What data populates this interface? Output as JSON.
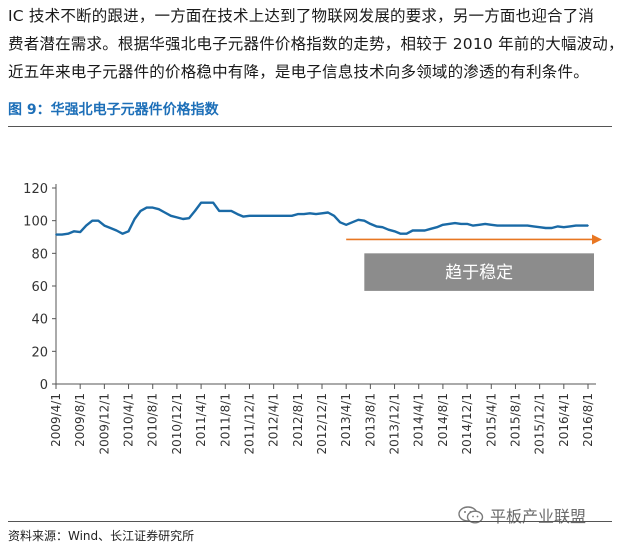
{
  "intro": {
    "line1": "IC 技术不断的跟进，一方面在技术上达到了物联网发展的要求，另一方面也迎合了消",
    "line2": "费者潜在需求。根据华强北电子元器件价格指数的走势，相较于 2010 年前的大幅波动，",
    "line3": "近五年来电子元器件的价格稳中有降，是电子信息技术向多领域的渗透的有利条件。"
  },
  "figure_title": "图 9：华强北电子元器件价格指数",
  "source": "资料来源：Wind、长江证券研究所",
  "watermark": "平板产业联盟",
  "colors": {
    "line": "#1a6aa6",
    "trend_arrow": "#e87722",
    "annotation_box": "#8c8c8c",
    "title": "#1d6fb8"
  },
  "chart_data": {
    "type": "line",
    "title": "",
    "xlabel": "",
    "ylabel": "",
    "ylim": [
      0,
      120
    ],
    "yticks": [
      0,
      20,
      40,
      60,
      80,
      100,
      120
    ],
    "xtick_labels": [
      "2009/4/1",
      "2009/8/1",
      "2009/12/1",
      "2010/4/1",
      "2010/8/1",
      "2010/12/1",
      "2011/4/1",
      "2011/8/1",
      "2011/12/1",
      "2012/4/1",
      "2012/8/1",
      "2012/12/1",
      "2013/4/1",
      "2013/8/1",
      "2013/12/1",
      "2014/4/1",
      "2014/8/1",
      "2014/12/1",
      "2015/4/1",
      "2015/8/1",
      "2015/12/1",
      "2016/4/1",
      "2016/8/1"
    ],
    "grid": false,
    "legend": "none",
    "annotation": "趋于稳定",
    "series": [
      {
        "x": [
          "2009/4/1",
          "2009/5/1",
          "2009/6/1",
          "2009/7/1",
          "2009/8/1",
          "2009/9/1",
          "2009/10/1",
          "2009/11/1",
          "2009/12/1",
          "2010/1/1",
          "2010/2/1",
          "2010/3/1",
          "2010/4/1",
          "2010/5/1",
          "2010/6/1",
          "2010/7/1",
          "2010/8/1",
          "2010/9/1",
          "2010/10/1",
          "2010/11/1",
          "2010/12/1",
          "2011/1/1",
          "2011/2/1",
          "2011/3/1",
          "2011/4/1",
          "2011/5/1",
          "2011/6/1",
          "2011/7/1",
          "2011/8/1",
          "2011/9/1",
          "2011/10/1",
          "2011/11/1",
          "2011/12/1",
          "2012/1/1",
          "2012/2/1",
          "2012/3/1",
          "2012/4/1",
          "2012/5/1",
          "2012/6/1",
          "2012/7/1",
          "2012/8/1",
          "2012/9/1",
          "2012/10/1",
          "2012/11/1",
          "2012/12/1",
          "2013/1/1",
          "2013/2/1",
          "2013/3/1",
          "2013/4/1",
          "2013/5/1",
          "2013/6/1",
          "2013/7/1",
          "2013/8/1",
          "2013/9/1",
          "2013/10/1",
          "2013/11/1",
          "2013/12/1",
          "2014/1/1",
          "2014/2/1",
          "2014/3/1",
          "2014/4/1",
          "2014/5/1",
          "2014/6/1",
          "2014/7/1",
          "2014/8/1",
          "2014/9/1",
          "2014/10/1",
          "2014/11/1",
          "2014/12/1",
          "2015/1/1",
          "2015/2/1",
          "2015/3/1",
          "2015/4/1",
          "2015/5/1",
          "2015/6/1",
          "2015/7/1",
          "2015/8/1",
          "2015/9/1",
          "2015/10/1",
          "2015/11/1",
          "2015/12/1",
          "2016/1/1",
          "2016/2/1",
          "2016/3/1",
          "2016/4/1",
          "2016/5/1",
          "2016/6/1",
          "2016/7/1",
          "2016/8/1"
        ],
        "values": [
          91.5,
          91.5,
          92,
          93.5,
          93,
          97,
          100,
          100,
          97,
          95.5,
          94,
          92,
          93.5,
          101,
          106,
          108,
          108,
          107,
          105,
          103,
          102,
          101,
          101.5,
          106,
          111,
          111,
          111,
          106,
          106,
          106,
          104,
          102.5,
          103,
          103,
          103,
          103,
          103,
          103,
          103,
          103,
          104,
          104,
          104.5,
          104,
          104.5,
          105,
          103,
          99,
          97.5,
          99,
          100.5,
          100,
          98,
          96.5,
          96,
          94.5,
          93.5,
          92,
          92,
          94,
          94,
          94,
          95,
          96,
          97.5,
          98,
          98.5,
          98,
          98,
          97,
          97.5,
          98,
          97.5,
          97,
          97,
          97,
          97,
          97,
          97,
          96.5,
          96,
          95.5,
          95.5,
          96.5,
          96,
          96.5,
          97,
          97,
          97
        ]
      }
    ]
  }
}
